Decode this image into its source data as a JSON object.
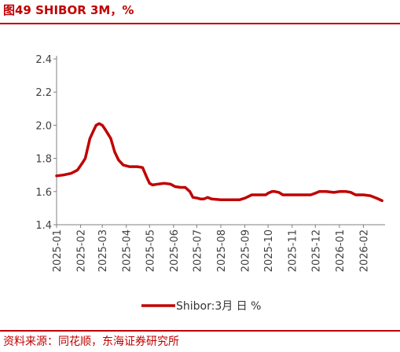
{
  "header": {
    "title": "图49  SHIBOR 3M，%"
  },
  "footer": {
    "source": "资料来源：同花顺，东海证券研究所"
  },
  "colors": {
    "accent": "#c00000",
    "series": "#c00000"
  },
  "chart_data": {
    "type": "line",
    "title": "图49  SHIBOR 3M，%",
    "xlabel": "",
    "ylabel": "",
    "ylim": [
      1.4,
      2.4
    ],
    "yticks": [
      "1.4",
      "1.6",
      "1.8",
      "2.0",
      "2.2",
      "2.4"
    ],
    "ytick_values": [
      1.4,
      1.6,
      1.8,
      2.0,
      2.2,
      2.4
    ],
    "xticks": [
      "2025-01",
      "2025-02",
      "2025-03",
      "2025-04",
      "2025-05",
      "2025-06",
      "2025-07",
      "2025-08",
      "2025-09",
      "2025-10",
      "2025-11",
      "2025-12",
      "2026-01",
      "2026-02"
    ],
    "xlim": [
      "2025-01-01",
      "2026-03-01"
    ],
    "grid": false,
    "legend": "bottom-center",
    "series": [
      {
        "name": "Shibor:3月 日 %",
        "x": [
          "2025-01-01",
          "2025-01-10",
          "2025-01-20",
          "2025-01-28",
          "2025-02-03",
          "2025-02-07",
          "2025-02-13",
          "2025-02-18",
          "2025-02-21",
          "2025-02-25",
          "2025-03-01",
          "2025-03-04",
          "2025-03-08",
          "2025-03-12",
          "2025-03-17",
          "2025-03-22",
          "2025-03-28",
          "2025-04-01",
          "2025-04-05",
          "2025-04-08",
          "2025-04-15",
          "2025-04-22",
          "2025-04-28",
          "2025-05-01",
          "2025-05-05",
          "2025-05-12",
          "2025-05-20",
          "2025-05-28",
          "2025-06-03",
          "2025-06-10",
          "2025-06-16",
          "2025-06-22",
          "2025-06-26",
          "2025-07-02",
          "2025-07-06",
          "2025-07-10",
          "2025-07-15",
          "2025-07-20",
          "2025-08-01",
          "2025-08-15",
          "2025-08-25",
          "2025-09-01",
          "2025-09-10",
          "2025-09-20",
          "2025-09-28",
          "2025-10-01",
          "2025-10-06",
          "2025-10-10",
          "2025-10-15",
          "2025-10-20",
          "2025-11-01",
          "2025-11-15",
          "2025-11-25",
          "2025-12-01",
          "2025-12-06",
          "2025-12-15",
          "2025-12-25",
          "2026-01-01",
          "2026-01-10",
          "2026-01-16",
          "2026-01-22",
          "2026-02-01",
          "2026-02-10",
          "2026-02-18",
          "2026-02-25"
        ],
        "y": [
          1.695,
          1.7,
          1.71,
          1.73,
          1.77,
          1.8,
          1.92,
          1.97,
          2.0,
          2.01,
          2.0,
          1.98,
          1.95,
          1.92,
          1.84,
          1.79,
          1.76,
          1.755,
          1.75,
          1.75,
          1.75,
          1.745,
          1.68,
          1.65,
          1.64,
          1.645,
          1.65,
          1.645,
          1.63,
          1.625,
          1.625,
          1.6,
          1.565,
          1.56,
          1.555,
          1.555,
          1.565,
          1.555,
          1.55,
          1.55,
          1.55,
          1.56,
          1.58,
          1.58,
          1.58,
          1.59,
          1.6,
          1.6,
          1.595,
          1.58,
          1.58,
          1.58,
          1.58,
          1.59,
          1.6,
          1.6,
          1.595,
          1.6,
          1.6,
          1.595,
          1.58,
          1.58,
          1.575,
          1.56,
          1.545
        ]
      }
    ]
  }
}
